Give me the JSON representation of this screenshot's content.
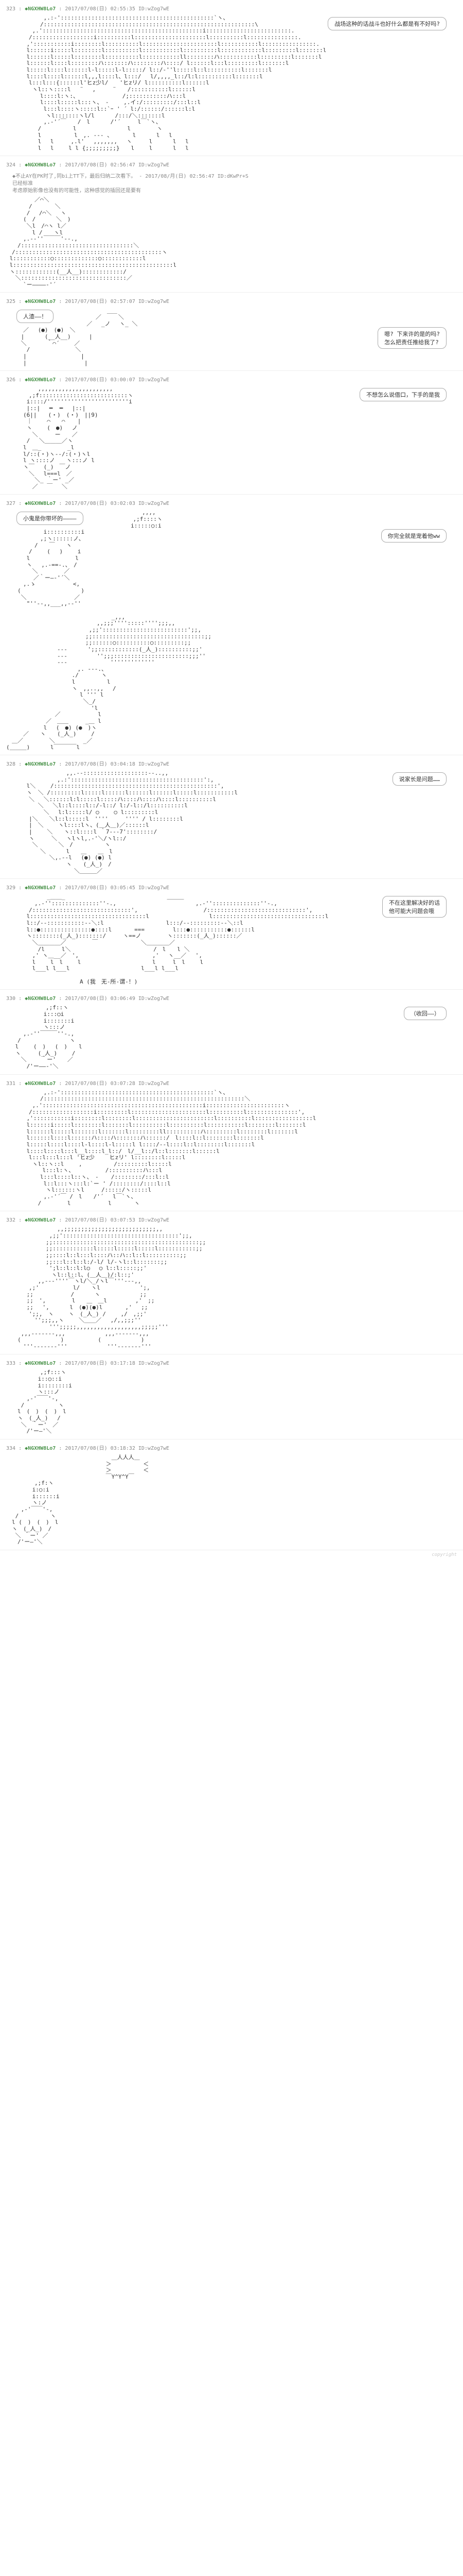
{
  "posts": [
    {
      "num": "323",
      "name": "◆NGXHW8Lo7",
      "date": "2017/07/08(日) 02:55:35 ID:wZog7wE",
      "dialogues": [
        {
          "text": "战场这种的话战斗也好什么都是有不好吗?",
          "side": "right"
        }
      ],
      "aa": "　　　　　　 ,.:‐':::::::::::::::::::::::::::::::::::::::::::::`ヽ、\n　　　　　　/::::::::::::::::::::::::::::::::::::::::::::::::::::::::::::::\\\n　　　　 ,.':::::::::::::::::::::::::::::::::::::::::::::::i:::::::::::::::::::::::::.\n　　　　/::::::::::::::::::i::::::::::l:::::::::::::::::::::l::::::::::l:::::::::::::::.\n　　　 ,':::::::::::i::::::::l::::::::::l::::::::::::::::::::::l:::::::::::l::::::::::::::::.\n　　　 l::::::i:::::l::::::::l::::::::::l:::::::::::l::::::::::l::::::::::::l:::::::::l:::::::l\n　　　 l::::::l:::::l::::::::l::::::::::l:::::::::::ll::::::::ハ:::::::::::l:::::::::l:::::::l\n　　　 l::::::l::::l::::::::ハ:::::::ハ::::::::ハ::::/ l::::::l:::l:::::::::l:::::::l\n　　　 l:::::l::::l::::::l‐l:::::l-l:::::/ l::/‐''l:::::l::l::::::::::l:::::::l\n　　　 l::::l::::l::::::l,,,l::::l、l:::/　 l/,,,,_l::/l:l::::::::::l:::::::l\n　　　　l:::l:::{::::::l'ヒz少l/　　'ヒzリ/ l::::::::::l::::::l\n　　　　 ヽl::ヽ::::l　 ¨　 ,　　　¨　　/:::::::::::l::::::l\n　　　　　　l::::l:ヽ:、　　　 　　　　 /;:::::::::::ハ:::l\n　　　　　　l::::l:::::l:::ヽ、　‐　　 ,.イ:/:::::::::/:::l::l\n　　　　　　 l:::l::::ヽ:::::l::`ｰ ' ´ l:/::::::/::::::l:l\n　　　　　　　ヽl:::::::ヽl/l　　　 /:::/＼:::::::l\n　　　　　　 ,.-'´￣　　/　l　　　 /'´　　　l￣`ヽ、\n　　　　　 /　　　　　 l　　　　　　　　　l　　　　 ヽ\n　　　　　 l　　 　 　 l　,. -‐- 、　　　　l　　　 l　 l\n　　　　　 l　 l　　　,.l'　 ,,,,,,,　 ヽ　　　l　　　 l　 l\n　　　　　 l　 l　　 l l {;;;;;;;;;}　　l　　 l　　 　l　 l"
    },
    {
      "num": "324",
      "name": "◆NGXHW8Lo7",
      "date": "2017/07/08(日) 02:56:47 ID:wZog7wE",
      "pre_note": "◆不止AY在PK时了,同bi上TT下，最后归纳二次看下。 - 2017/08/月(日) 02:56:47 ID:dKwPr+S\n已经标准\n考虑原始影像也没有的可能性，这种感觉的插回还是要有",
      "dialogues": [],
      "aa": "　　　　　／⌒＼\n　　　　/　　　　＼\n　　　 /　 /⌒＼　 ヽ\n　　　(　/　　　 ＼　)\n　　　 ＼l　/⌒ヽ l／\n　　　　 l /　　ヽl\n　　　,.-‐''￣￣￣'‐-.,\n　　/:::::::::::::::::::::::::::::::::＼\n　/:::::::::::::::::::::::::::::::::::::::::::ヽ\n l:::::::::::○:::::::::::::○::::::::::::l\n l:::::::::::::::::::::::::::::::::::::::::::::::l\n ヽ::::::::::::(__人__)::::::::::::/\n　 ＼:::::::::::::::::::::::::::::::／\n　　　`ー――――‐'´"
    },
    {
      "num": "325",
      "name": "◆NGXHW8Lo7",
      "date": "2017/07/08(日) 02:57:07 ID:wZog7wE",
      "dialogues": [
        {
          "text": "人渣——！",
          "side": "left"
        },
        {
          "text": "嗯? 下来许的是的吗?\n怎么把责任推给我了?",
          "side": "right"
        }
      ],
      "aa": "　　　　　　　 ___\n　　　　　 ／　　　＼\n　　　　／　 _ノ　 ヽ_ ＼\n　　　／　 (●)　(●)　＼\n　　 |　　　 (__人__)　 　 |\n　　 ＼　　　 ｀⌒´　　 ／\n　　　 /　　　　　　　　＼\n　　　|　　　　　　　　　 |\n　　　|　　　　　 　　　 　|"
    },
    {
      "num": "326",
      "name": "◆NGXHW8Lo7",
      "date": "2017/07/08(日) 03:00:07 ID:wZog7wE",
      "dialogues": [
        {
          "text": "不想怎么说借口，下手的是我",
          "side": "right"
        }
      ],
      "aa": "　　　　　 ,,,,,,,,,,,,,,,,,,,,,,\n　　　　,;f::::::::::::::::::::::::::ヽ\n　　　 i::::/''''''''''''''''''''''''i\n　　　 |::|　 ━  ━ 　|::|\n　　　(6||　　(・)　(・)　||9)\n　　　 ｜　　 ⌒　　⌒ 　 |\n　　　 ヽ　　 (　●)　 ノ\n　　　　 ＼　　　ー　　／\n　　　 /　 ＼＿＿＿／ヽ\n　　　l　＿_　　　　 _l\n　　　l/::(・)ヽ--/:(・)ヽl\n　　　l ヽ::::ノ　　ヽ:::ノ l\n　　　ヽ￣　 (_)　￣ノ\n　　　　＼　 l===l　／\n　　　　　＼_ ｀ー' _／\n　　　　 ／　 ￣　 ＼"
    },
    {
      "num": "327",
      "name": "◆NGXHW8Lo7",
      "date": "2017/07/08(日) 03:02:03 ID:wZog7wE",
      "dialogues": [
        {
          "text": "小鬼是你带坏的————",
          "side": "left"
        },
        {
          "text": "你完全就是宠着他ww",
          "side": "right"
        }
      ],
      "aa": "　　　　　　　　 ,,,,\n　　　　　　　,;f::::ヽ\n　　　　　　 i:::::○:i\n　　　　　　 i::::::::::i\n　　　　　　,;ヽ::::::ノ、\n　　　　　/　　￣　　ヽ\n　　　　/　　 (　 )　　 i\n　　　 l　　　　　　　　l\n　　　 ヽ　 ,.‐==‐.、　/\n　　　　 ＼　　　　 ／\n　 　 　 ／｀ー―‐'´＼\n　　　,.ゝ　　　　　　 <,\n　　(　　 　 　 　 　 　 )\n　　 ＼　　　 　 　 　 ／\n　　　 \"''‐-,,___,,-‐''\n\n　　　　　　　　　　　　　　　　　　 _,,,\n　　　　　　　　　　　　　　　　,,;;;'''':::::'''';;;,,\n　　　　　　　　　　　　　　 ,;;':::::::::::::::::::::::::';;,\n　　　　　　　　　　　　　　;;:::::::::::::::::::::::::::::::::;;\n　　　　　　　　　　　　　　;;::::::○::::::::::○:::::::::;;\n　　　　　　　　　---　　 　';;::::::::::::(_人_)::::::::::;;'\n　　　　　　　　　---　　 　 　'';;;::::::::::::::::::::::;;;''\n　　　　　　　　　---　　　　　　　 '''''''''''''\n　　　　　　　　　　　　 ,. -‐-.、\n　　　　　　　　　　　 ./　　　　ヽ\n　　　　　　　　　　　 l　　　　　 l\n　　　　　　　　　　　 ヽ　,,..,,　 /\n　　　　　　　　　　　　　l ''' l\n　　　　　　　　　　　　　 ＼_/\n　　　　　　　　　　　　　　　'l\n　　　　　　　　 ／　　　　　　 l\n　　　　　　　／　＿＿　　　_＿ l\n　　　　　　 l　 (　●) (●　)ヽ\n　　　／　　ヽ　　(_人_)　　 /\n　＿／　　　　 ＼　　　　　_／\n(＿＿＿)　　　 l￣￣￣￣l"
    },
    {
      "num": "328",
      "name": "◆NGXHW8Lo7",
      "date": "2017/07/08(日) 03:04:18 ID:wZog7wE",
      "dialogues": [
        {
          "text": "说家长是问题……",
          "side": "right"
        }
      ],
      "aa": "　　　　　　　　　　 ,,.-‐:::::::::::::::::::‐-..,,\n　　　　　　　　　,.:':::::::::::::::::::::::::::::::::::::::':,\n　　　 l＼　　 /::::::::::::::::::::::::::::::::::::::::::::::::',\n　　　 ヽ　＼ /:::::::::l:::::l::::::l::::::l::::::l:::::l:::::::::::l\n　　　　＼　 ＼::::::l:l:::::l:::::ハ::::ハ::::ハ::::l::::::::::l\n　　　　　 ＼　 ＼l::l::::l::/‐l::/ l:/-l::/l::::::::::l\n　　　　　　 ＼　 l:l:::::l/ ○　　 ○ l:::::::::l\n　　　　|＼　　＼l::l:::::l　''''　　　'''' / l::::::::l\n　　　　|　＼　　 ヽl::::lヽ、(＿人＿)／::::::l\n　　　　|　　 ＼　　ヽ::l::::l ｀7‐-‐7'::::::::/\n　　　　ヽ　　　＼　 ヽlヽl,.-'＼/ヽl::/\n　　　　 ＼　 　　＼　/　　　　　 ヽ\n　　　　　　＼　　　 l　　＿　　＿　l\n　　　　　　　 ＼,.-‐l　 (●) (●) l\n　　　　　　　　　　 ヽ　　(_人_)　/\n　　　　　　　　　　　　＼＿＿＿／"
    },
    {
      "num": "329",
      "name": "◆NGXHW8Lo7",
      "date": "2017/07/08(日) 03:05:45 ID:wZog7wE",
      "dialogues": [
        {
          "text": "不在这里解决好的话\n他可能大问题会哦",
          "side": "right"
        }
      ],
      "aa": "　　　　　 　 _＿＿_　　　　　　　　　　　　　　　　　　＿＿＿\n　　　　　,.-''::::::::::::::''-.,　　　　　　　　　　　　　　,.-''::::::::::::::''-.,\n　　　　/:::::::::::::::::::::::::::::',　　　　　　　　　　　 /:::::::::::::::::::::::::::::',\n　　　 l::::::::::::::::::::::::::::::::::l　　　　　　　　　　 l:::::::::::::::::::::::::::::::::l\n　　　 l::/‐-:::::::::::-‐＼:l　　　　　　　　　　　l:::/‐-:::::::::-‐＼::l\n　　　 l::●:::::::::::::::●::::l　　　　===　　　　　l:::●:::::::::::●::::::l\n　　　 ヽ::::::::(_人_):::::::/　　　ヽ==ノ　　　　 ヽ:::::::(_人_)::::::／\n　　　　 ＼＿＿＿＿／　　　　 ￣　　　　　　　 ＼＿＿＿＿／\n　　　　　 /l　　　l＼　　　　　　　　　　　　　　 /　l　　l ＼\n　　　　 ,' ヽ＿__／　',　　　　　　　　　　　　　,'　 ヽ__／　 ',\n　　　　 l　　 l　l　　 l　　　　　　　　　　　　 l　　　l　l　　 l\n　　　　 l___l l___l　　　　　　　　　　　　 l___l l___l\n\n　　　　　　　　　　　　　A (我　无-所-谓-！)"
    },
    {
      "num": "330",
      "name": "◆NGXHW8Lo7",
      "date": "2017/07/08(日) 03:06:49 ID:wZog7wE",
      "dialogues": [
        {
          "text": "（收回——）",
          "side": "right"
        }
      ],
      "aa": "　　　　　　　,;f::ヽ\n　　　　　　 i:::○i\n　　　　　　 i:::::::i\n　　　　　　 ヽ:::ノ\n　　　,.-''￣￣￣''‐.,\n　　/　　　　　　　　 ヽ\n　 l　　 (　)　 (　)　　l\n　 ヽ　　　(_人_)　　 /\n　　 ＼　　 ｀ー'　　／\n　　　 /'ー――‐'＼"
    },
    {
      "num": "331",
      "name": "◆NGXHW8Lo7",
      "date": "2017/07/08(日) 03:07:28 ID:wZog7wE",
      "dialogues": [],
      "aa": "　　　　　　 ,.:‐':::::::::::::::::::::::::::::::::::::::::::::`ヽ、\n　　　　　　/:::::::::::::::::::::::::::::::::::::::::::::::::::::::::::＼\n　　　　 ,.':::::::::::::::::::::::::::::::::::::::::::::::i:::::::::::::::::::::::ヽ\n　　　　/::::::::::::::::::i:::::::::l::::::::::::::::::::::l::::::::::l:::::::::::::::',\n　　　 ,':::::::::::i::::::::l::::::::l:::::::::::::::::::::::l::::::::::l:::::::::::::::::l\n　　　 l::::::i:::::l::::::::l:::::::l::::::::::l::::::::::l:::::::::::l::::::::l:::::::l\n　　　 l::::::l:::::l:::::::l:::::::l:::::::::ll::::::::::ハ:::::::::l::::::::l:::::::l\n　　　 l::::::l::::l::::::ハ::::ハ:::::::ハ::::::/　l::::l::l::::::::l:::::::l\n　　　 l:::::l::::l::::l‐l::::l-l:::::l l::::/-‐l::::l::l::::::::l:::::::l\n　　　 l::::l::::l:::l__l::::l_l::/　l/__l::/l::l:::::::l::::::l\n　　　　l:::l:::l:::l 'ヒz少　　 ヒzリ' l::::::::l:::::l\n　　　　 ヽl::ヽ::l　　 ,　　　　　 /:::::::::l:::::l\n　 　 　 　 l:::l:ヽ、　　　　　　/::::::::::ハ:::l\n　　　　　　l:::l::::l::ヽ、　‐ 　 /::::::::/:::l::l\n　　　　　　 l::l:::ヽ:::l:`ー ' /::::::::/::::l::l\n　　　　　　　ヽl::::::ヽl　　　/:::::/ヽ:::::l\n　　　　　　 ,.-'´￣ /　l　　/'´　 l￣`ヽ、\n　　　　　 /　　　　 l　　　　　　 l　　　　ヽ"
    },
    {
      "num": "332",
      "name": "◆NGXHW8Lo7",
      "date": "2017/07/08(日) 03:07:53 ID:wZog7wE",
      "dialogues": [],
      "aa": "　　　　　　　　　,,;;;;;;;;;;;;;;;;;;;;;;;;;;;,,\n　　　　　　　 ,;;'::::::::::::::::::::::::::::::::::';;,\n　　　　　　　;;:::::::::::::::::::::::::::::::::::::::::::;;\n　　　　　　　;;::::::::::::l:::::l:::::l:::::l:::::::::::;;\n　　　　　　　;;::::l::l:::l::::ハ::ハ::l::l::::::::::;;\n　　　　　　　;;:::l::l::l:/‐l/ l/‐ヽl::l:::::::;;\n　　　　　　　 ';l::l::l:l○　 ○ l::l:::::;;'\n　　　　　　　　ヽl::l::l、(＿人＿)/:l::;'\n　　　　　 ,,--‐''''￣ヽl/＼_/ヽl￣'''‐--,,\n　　　　,;'　　　　　　l/　　ヽl　　　　　　　';,\n　　　 ;;　　　　　　 /　　　 ヽ　　　　　　　;;\n　　　 ;;　',　　　　 l　　＿　＿l　　　　　,'　;;\n　　　 ;;　 ',　　　 l　(●)(●)l　　　　,'　 ;;\n　　　　';;,　ヽ　　 ヽ　(_人_) /　　 ,/　,;;'\n　　　　　'';;;,,ヽ　　 ＼＿＿／　 ,/,,;;;''\n　　　　　　　 ''';;;;;,,,,,,,,,,,,,,,,,,,;;;;;'''\n　　 ,,,--‐‐‐--,,,　　　　　　　,,,--‐‐‐--,,,\n　　(　　　　　　　)　　　　　　(　　　　　　　)\n　　　'''‐-----‐'''　　　　　　　'''‐-----‐'''"
    },
    {
      "num": "333",
      "name": "◆NGXHW8Lo7",
      "date": "2017/07/08(日) 03:17:18 ID:wZog7wE",
      "dialogues": [],
      "aa": "　　　　　　,;f:::ヽ\n　　　　　 i::○::i\n　　　　　 i::::::::i\n　　　　　 ヽ:::ノ\n　　　 ,-'￣￣'‐,\n　　 /　　　　　　ヽ\n　　l　(　)　(　)　l\n　　ヽ　(_人_)　 /\n　　 ＼　｀ー'　／\n　　　 /'ー―'＼"
    },
    {
      "num": "334",
      "name": "◆NGXHW8Lo7",
      "date": "2017/07/08(日) 03:18:32 ID:wZog7wE",
      "dialogues": [],
      "aa": "　　　　　　　　　　　　　　　　　　 ＿人人人＿\n　　　　　　　　　　　　　　　　　 ＞　　　　　 ＜\n　　　　　　　　　　　　　　　　　 ＞　　　　　 ＜\n　　　　　　　　　　　　　　　　　 ￣Y^Y^Y￣\n　　　　　,;f:ヽ\n　　　　 i:○:i\n　　　　 i::::::i\n　　　　 ヽ:ノ\n　　 ,-'￣￣'‐,\n　 /　　　　　 ヽ\n　l (　)　(　)　l\n　ヽ　(_人_)　/\n　 ＼ ｀ー' ／\n　　/'ー―'＼"
    }
  ],
  "watermark": "copyright"
}
